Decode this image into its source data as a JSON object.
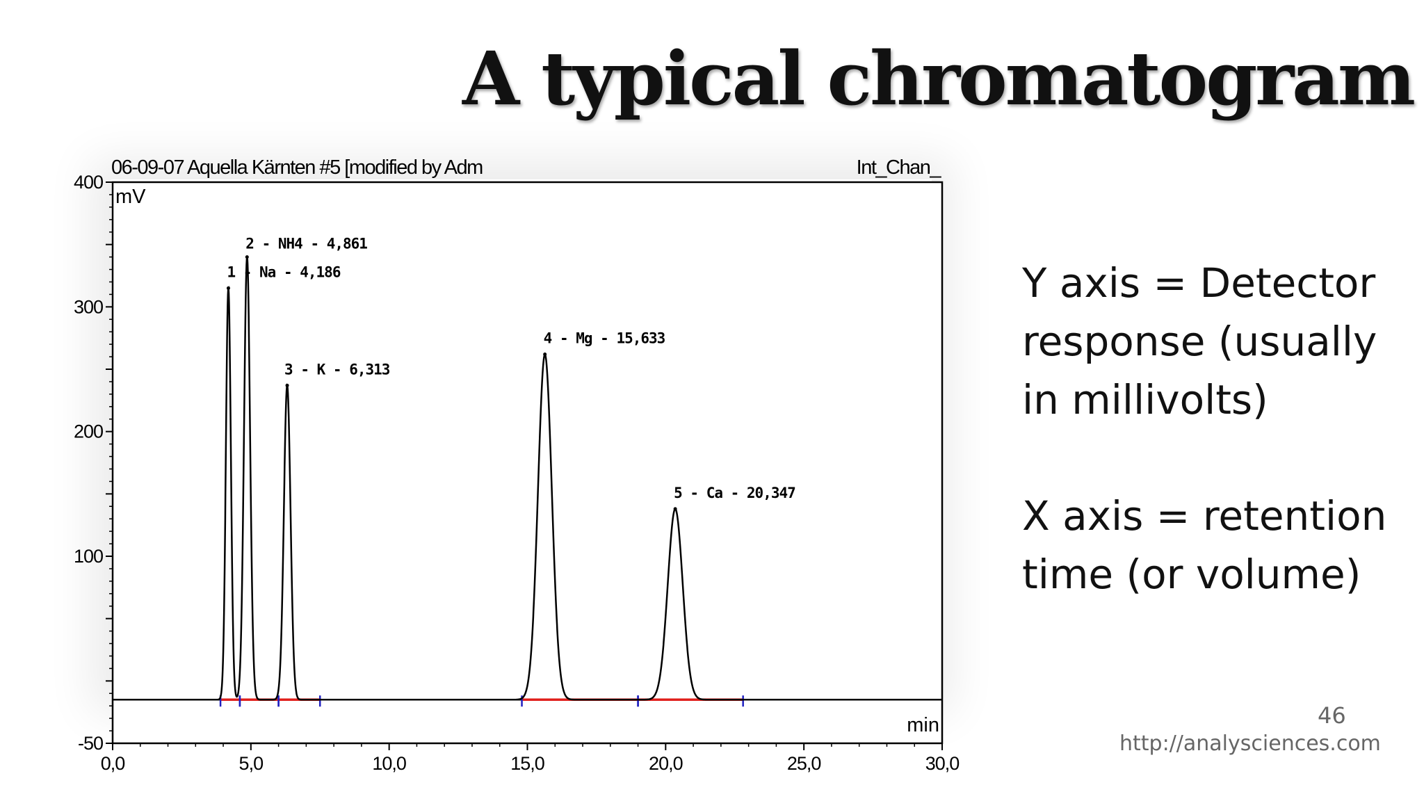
{
  "slide": {
    "title": "A typical chromatogram",
    "note_y": "Y axis = Detector response (usually in millivolts)",
    "note_x": "X axis = retention time (or volume)",
    "page_number": "46",
    "source": "http://analysciences.com"
  },
  "chart_data": {
    "type": "line",
    "header_left": "06-09-07 Aquella Kärnten #5 [modified by Adm",
    "header_right": "Int_Chan_",
    "ylabel": "mV",
    "xlabel": "min",
    "xlim": [
      0,
      30
    ],
    "ylim": [
      -50,
      400
    ],
    "x_ticks": [
      "0,0",
      "5,0",
      "10,0",
      "15,0",
      "20,0",
      "25,0",
      "30,0"
    ],
    "x_tick_values": [
      0,
      5,
      10,
      15,
      20,
      25,
      30
    ],
    "y_ticks": [
      "-50",
      "100",
      "200",
      "300",
      "400"
    ],
    "y_tick_values": [
      -50,
      100,
      200,
      300,
      400
    ],
    "baseline": -15,
    "peaks": [
      {
        "label": "1 - Na - 4,186",
        "x": 4.186,
        "height": 315
      },
      {
        "label": "2 - NH4 - 4,861",
        "x": 4.861,
        "height": 340
      },
      {
        "label": "3 - K - 6,313",
        "x": 6.313,
        "height": 237
      },
      {
        "label": "4 - Mg - 15,633",
        "x": 15.633,
        "height": 262
      },
      {
        "label": "5 - Ca - 20,347",
        "x": 20.347,
        "height": 138
      }
    ],
    "integration_segments": [
      [
        3.9,
        4.6
      ],
      [
        4.6,
        6.0
      ],
      [
        6.0,
        7.5
      ],
      [
        14.8,
        19.0
      ],
      [
        19.0,
        22.8
      ]
    ],
    "colors": {
      "trace": "#000000",
      "baseline_marks": "#e0201c",
      "peak_marks": "#2020c0"
    }
  }
}
